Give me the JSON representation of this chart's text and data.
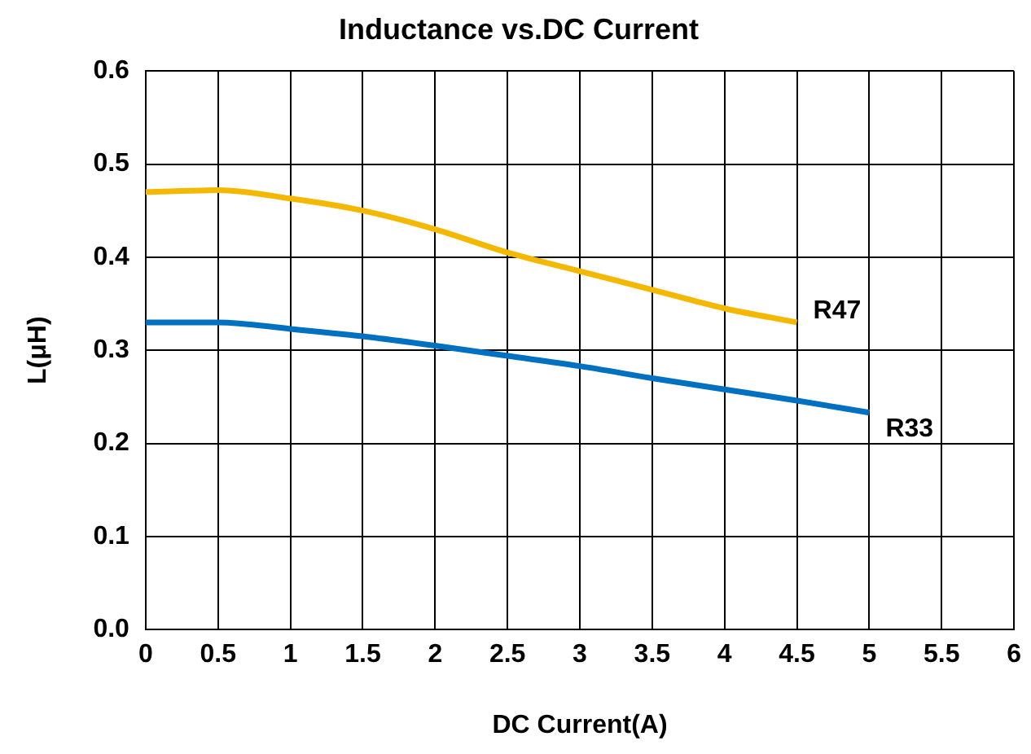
{
  "chart_data": {
    "type": "line",
    "title": "Inductance vs.DC Current",
    "xlabel": "DC Current(A)",
    "ylabel": "L(μH)",
    "xlim": [
      0,
      6
    ],
    "xticks": [
      0,
      0.5,
      1,
      1.5,
      2,
      2.5,
      3,
      3.5,
      4,
      4.5,
      5,
      5.5,
      6
    ],
    "ylim": [
      0,
      0.6
    ],
    "yticks": [
      {
        "value": 0,
        "label": "0.0"
      },
      0.1,
      0.2,
      0.3,
      0.4,
      0.5,
      0.6
    ],
    "grid": true,
    "legend": false,
    "marker": "none",
    "line_style": "solid",
    "series": [
      {
        "name": "R47",
        "color": "#f5b800",
        "x": [
          0,
          0.5,
          1,
          1.5,
          2,
          2.5,
          3,
          3.5,
          4,
          4.5
        ],
        "values": [
          0.47,
          0.472,
          0.463,
          0.45,
          0.43,
          0.405,
          0.385,
          0.365,
          0.345,
          0.33
        ]
      },
      {
        "name": "R33",
        "color": "#0070c0",
        "x": [
          0,
          0.5,
          1,
          1.5,
          2,
          2.5,
          3,
          3.5,
          4,
          4.5,
          5
        ],
        "values": [
          0.33,
          0.33,
          0.323,
          0.315,
          0.305,
          0.294,
          0.283,
          0.27,
          0.258,
          0.246,
          0.233
        ]
      }
    ]
  }
}
